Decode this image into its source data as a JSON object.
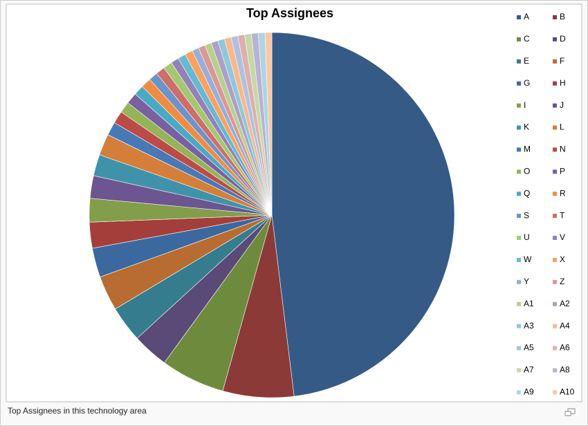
{
  "chart_data": {
    "type": "pie",
    "title": "Top Assignees",
    "categories": [
      "A",
      "B",
      "C",
      "D",
      "E",
      "F",
      "G",
      "H",
      "I",
      "J",
      "K",
      "L",
      "M",
      "N",
      "O",
      "P",
      "Q",
      "R",
      "S",
      "T",
      "U",
      "V",
      "W",
      "X",
      "Y",
      "Z",
      "A1",
      "A2",
      "A3",
      "A4",
      "A5",
      "A6",
      "A7",
      "A8",
      "A9",
      "A10"
    ],
    "values": [
      48.2,
      6.3,
      5.7,
      3.2,
      3.2,
      3.1,
      2.6,
      2.3,
      2.1,
      2.0,
      1.9,
      1.9,
      1.2,
      1.1,
      1.0,
      1.0,
      0.9,
      0.9,
      0.8,
      0.8,
      0.8,
      0.7,
      0.7,
      0.7,
      0.6,
      0.6,
      0.6,
      0.6,
      0.6,
      0.6,
      0.6,
      0.6,
      0.6,
      0.6,
      0.6,
      0.6
    ],
    "colors": [
      "#355a86",
      "#8b3a38",
      "#6e8b3d",
      "#5a4a78",
      "#357d8e",
      "#b86c32",
      "#3c68a0",
      "#a43e3b",
      "#829e4a",
      "#6c5590",
      "#3e93aa",
      "#d57e3a",
      "#4978b6",
      "#bc4b48",
      "#93b557",
      "#7b60a0",
      "#4aaac5",
      "#f08c42",
      "#6e93c8",
      "#cd6e6b",
      "#a6c772",
      "#9582b4",
      "#66b9d2",
      "#f7a263",
      "#98afd6",
      "#d99896",
      "#b8d08f",
      "#aba0c6",
      "#8fc8da",
      "#f8b88b",
      "#afc1de",
      "#ddafad",
      "#c5d9a8",
      "#bab2d1",
      "#add5e3",
      "#f9c8a6"
    ],
    "legend": "right"
  },
  "caption": "Top Assignees in this technology area"
}
